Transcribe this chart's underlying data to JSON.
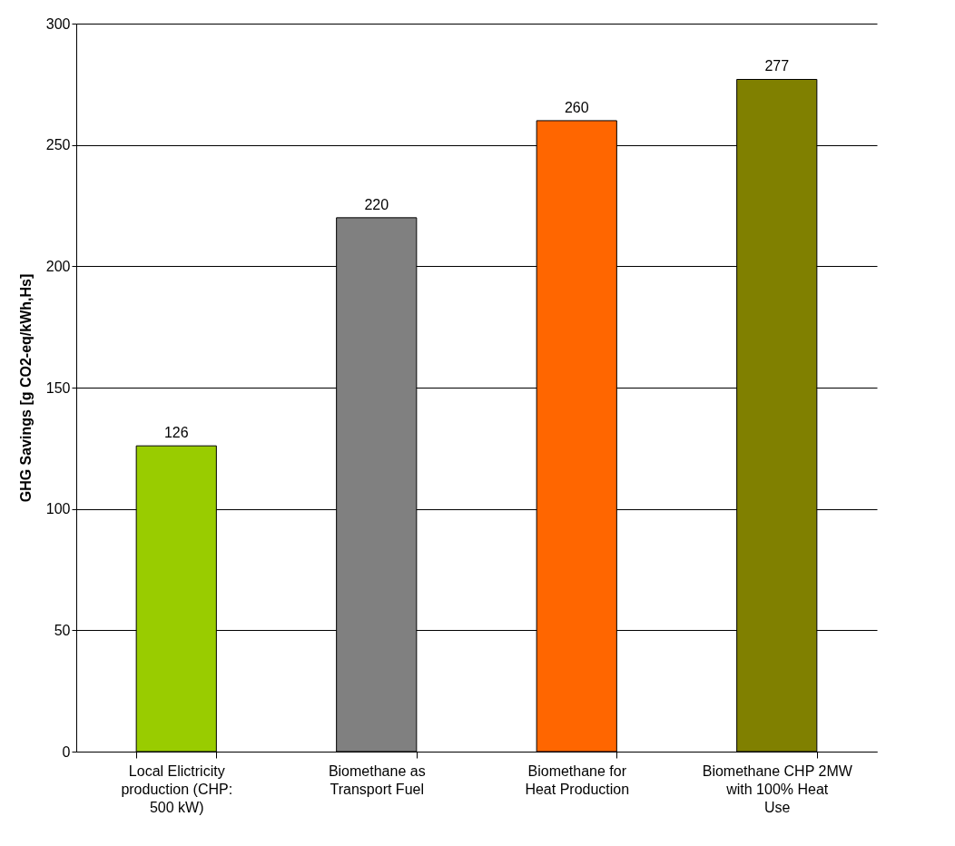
{
  "chart_data": {
    "type": "bar",
    "ylabel": "GHG Savings [g CO2-eq/kWh,Hs]",
    "categories": [
      "Local Elictricity production (CHP: 500 kW)",
      "Biomethane as Transport Fuel",
      "Biomethane for Heat Production",
      "Biomethane CHP 2MW with  100% Heat Use"
    ],
    "values": [
      126,
      220,
      260,
      277
    ],
    "colors": [
      "#99cc00",
      "#808080",
      "#ff6600",
      "#808000"
    ],
    "ylim": [
      0,
      300
    ],
    "yticks": [
      0,
      50,
      100,
      150,
      200,
      250,
      300
    ],
    "grid": "y",
    "data_labels": true
  }
}
